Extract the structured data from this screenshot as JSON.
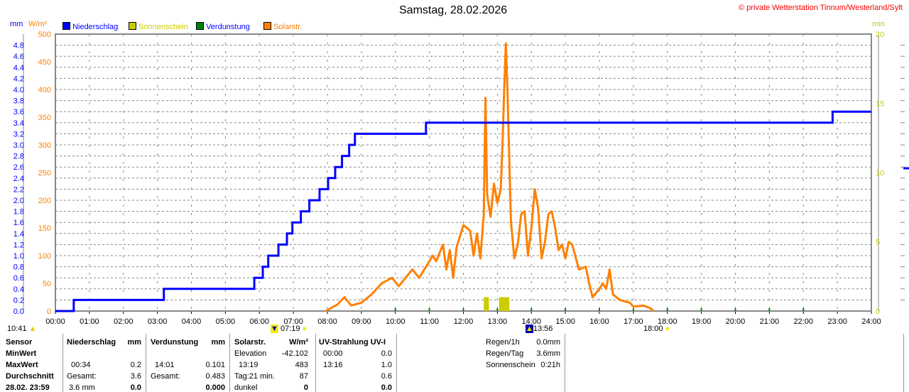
{
  "title": "Samstag, 28.02.2026",
  "copyright": "© private Wetterstation Tinnum/Westerland/Sylt",
  "colors": {
    "precip": "#0000ff",
    "sun": "#cccc00",
    "evap": "#008000",
    "solar": "#ff8000"
  },
  "chart_data": {
    "type": "line",
    "title": "Samstag, 28.02.2026",
    "axis_units": {
      "left_mm": "mm",
      "left_solar": "W/m²",
      "right": "min"
    },
    "legend": [
      "Niederschlag",
      "Sonnenschein",
      "Verdunstung",
      "Solarstr."
    ],
    "x_ticks": [
      "00:00",
      "01:00",
      "02:00",
      "03:00",
      "04:00",
      "05:00",
      "06:00",
      "07:00",
      "08:00",
      "09:00",
      "10:00",
      "11:00",
      "12:00",
      "13:00",
      "14:00",
      "15:00",
      "16:00",
      "17:00",
      "18:00",
      "19:00",
      "20:00",
      "21:00",
      "22:00",
      "23:00",
      "24:00"
    ],
    "xlim": [
      0,
      24
    ],
    "ylim_mm": [
      0,
      5
    ],
    "ylim_solar": [
      0,
      500
    ],
    "ylim_min": [
      0,
      20
    ],
    "mm_ticks": [
      "0.0",
      "0.2",
      "0.4",
      "0.6",
      "0.8",
      "1.0",
      "1.2",
      "1.4",
      "1.6",
      "1.8",
      "2.0",
      "2.2",
      "2.4",
      "2.6",
      "2.8",
      "3.0",
      "3.2",
      "3.4",
      "3.6",
      "3.8",
      "4.0",
      "4.2",
      "4.4",
      "4.6",
      "4.8"
    ],
    "solar_ticks": [
      "0",
      "50",
      "100",
      "150",
      "200",
      "250",
      "300",
      "350",
      "400",
      "450",
      "500"
    ],
    "min_ticks": [
      "0",
      "5",
      "10",
      "15",
      "20"
    ],
    "series": [
      {
        "name": "Niederschlag",
        "steps": [
          [
            0,
            0
          ],
          [
            0.54,
            0.2
          ],
          [
            3.19,
            0.4
          ],
          [
            5.85,
            0.6
          ],
          [
            6.1,
            0.8
          ],
          [
            6.26,
            1.0
          ],
          [
            6.56,
            1.2
          ],
          [
            6.81,
            1.4
          ],
          [
            6.97,
            1.6
          ],
          [
            7.22,
            1.8
          ],
          [
            7.47,
            2.0
          ],
          [
            7.77,
            2.2
          ],
          [
            8.02,
            2.4
          ],
          [
            8.23,
            2.6
          ],
          [
            8.43,
            2.8
          ],
          [
            8.64,
            3.0
          ],
          [
            8.81,
            3.2
          ],
          [
            10.9,
            3.4
          ],
          [
            22.86,
            3.6
          ],
          [
            24,
            3.6
          ]
        ]
      },
      {
        "name": "Solarstr.",
        "points": [
          [
            7.95,
            0
          ],
          [
            8.3,
            12
          ],
          [
            8.5,
            25
          ],
          [
            8.7,
            10
          ],
          [
            9.0,
            15
          ],
          [
            9.3,
            30
          ],
          [
            9.6,
            50
          ],
          [
            9.9,
            60
          ],
          [
            10.1,
            45
          ],
          [
            10.3,
            60
          ],
          [
            10.5,
            75
          ],
          [
            10.7,
            60
          ],
          [
            10.9,
            80
          ],
          [
            11.1,
            100
          ],
          [
            11.2,
            90
          ],
          [
            11.4,
            120
          ],
          [
            11.5,
            75
          ],
          [
            11.6,
            110
          ],
          [
            11.7,
            60
          ],
          [
            11.8,
            115
          ],
          [
            12.0,
            155
          ],
          [
            12.2,
            145
          ],
          [
            12.3,
            100
          ],
          [
            12.4,
            140
          ],
          [
            12.5,
            95
          ],
          [
            12.6,
            175
          ],
          [
            12.65,
            385
          ],
          [
            12.7,
            210
          ],
          [
            12.8,
            170
          ],
          [
            12.9,
            230
          ],
          [
            13.0,
            195
          ],
          [
            13.1,
            220
          ],
          [
            13.15,
            300
          ],
          [
            13.2,
            400
          ],
          [
            13.25,
            483
          ],
          [
            13.3,
            390
          ],
          [
            13.4,
            160
          ],
          [
            13.5,
            95
          ],
          [
            13.6,
            120
          ],
          [
            13.7,
            175
          ],
          [
            13.8,
            180
          ],
          [
            13.9,
            100
          ],
          [
            14.0,
            150
          ],
          [
            14.1,
            220
          ],
          [
            14.2,
            185
          ],
          [
            14.3,
            95
          ],
          [
            14.4,
            125
          ],
          [
            14.5,
            175
          ],
          [
            14.6,
            180
          ],
          [
            14.7,
            150
          ],
          [
            14.8,
            110
          ],
          [
            14.9,
            120
          ],
          [
            15.0,
            95
          ],
          [
            15.1,
            125
          ],
          [
            15.2,
            120
          ],
          [
            15.4,
            75
          ],
          [
            15.6,
            80
          ],
          [
            15.7,
            50
          ],
          [
            15.8,
            25
          ],
          [
            16.0,
            40
          ],
          [
            16.1,
            50
          ],
          [
            16.2,
            40
          ],
          [
            16.3,
            75
          ],
          [
            16.4,
            30
          ],
          [
            16.6,
            20
          ],
          [
            16.9,
            15
          ],
          [
            17.0,
            8
          ],
          [
            17.3,
            10
          ],
          [
            17.5,
            5
          ],
          [
            17.6,
            0
          ]
        ]
      },
      {
        "name": "Sonnenschein",
        "bars": [
          [
            12.6,
            12.75,
            1
          ],
          [
            13.05,
            13.35,
            1
          ]
        ]
      },
      {
        "name": "Verdunstung",
        "marks": [
          11.0,
          12.0,
          13.0,
          14.0,
          15.0,
          16.0,
          17.0,
          18.0,
          19.0,
          20.0,
          21.0,
          22.0,
          10.0
        ]
      }
    ]
  },
  "sun": {
    "moonset": "10:41",
    "sunrise": "07:19",
    "moonrise": "13:56",
    "sunset": "18:00"
  },
  "table": {
    "sensor": [
      "Sensor",
      "MinWert",
      "MaxWert",
      "Durchschnitt",
      "28.02. 23:59"
    ],
    "precip": {
      "head": "Niederschlag",
      "unit": "mm",
      "max_t": "00:34",
      "max_v": "0.2",
      "total_l": "Gesamt:",
      "total_v": "3.6",
      "last_l": "3.6 mm",
      "last_v": "0.0"
    },
    "evap": {
      "head": "Verdunstung",
      "unit": "mm",
      "max_t": "14:01",
      "max_v": "0.101",
      "total_l": "Gesamt:",
      "total_v": "0.483",
      "last_v": "0.000"
    },
    "solar": {
      "head": "Solarstr.",
      "unit": "W/m²",
      "min_t": "Elevation",
      "min_v": "-42.102",
      "max_t": "13:19",
      "max_v": "483",
      "avg_l": "Tag:21 min.",
      "avg_v": "87",
      "last_l": "dunkel",
      "last_v": "0"
    },
    "uv": {
      "head": "UV-Strahlung UV-I",
      "min_t": "00:00",
      "min_v": "0.0",
      "max_t": "13:16",
      "max_v": "1.0",
      "avg_v": "0.6",
      "last_v": "0.0"
    },
    "summary": [
      [
        "Regen/1h",
        "0.0mm"
      ],
      [
        "Regen/Tag",
        "3.6mm"
      ],
      [
        "Sonnenschein",
        "0:21h"
      ]
    ]
  }
}
